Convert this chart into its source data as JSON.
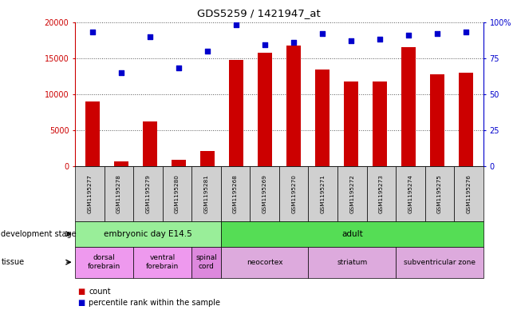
{
  "title": "GDS5259 / 1421947_at",
  "samples": [
    "GSM1195277",
    "GSM1195278",
    "GSM1195279",
    "GSM1195280",
    "GSM1195281",
    "GSM1195268",
    "GSM1195269",
    "GSM1195270",
    "GSM1195271",
    "GSM1195272",
    "GSM1195273",
    "GSM1195274",
    "GSM1195275",
    "GSM1195276"
  ],
  "counts": [
    9000,
    700,
    6200,
    900,
    2100,
    14700,
    15700,
    16700,
    13400,
    11800,
    11800,
    16500,
    12800,
    13000
  ],
  "percentiles": [
    93,
    65,
    90,
    68,
    80,
    98,
    84,
    86,
    92,
    87,
    88,
    91,
    92,
    93
  ],
  "bar_color": "#cc0000",
  "dot_color": "#0000cc",
  "ylim_left": [
    0,
    20000
  ],
  "ylim_right": [
    0,
    100
  ],
  "yticks_left": [
    0,
    5000,
    10000,
    15000,
    20000
  ],
  "yticks_right": [
    0,
    25,
    50,
    75,
    100
  ],
  "development_stages": [
    {
      "label": "embryonic day E14.5",
      "start": 0,
      "end": 4,
      "color": "#99ee99"
    },
    {
      "label": "adult",
      "start": 5,
      "end": 13,
      "color": "#55dd55"
    }
  ],
  "tissues": [
    {
      "label": "dorsal\nforebrain",
      "start": 0,
      "end": 1,
      "color": "#ee99ee"
    },
    {
      "label": "ventral\nforebrain",
      "start": 2,
      "end": 3,
      "color": "#ee99ee"
    },
    {
      "label": "spinal\ncord",
      "start": 4,
      "end": 4,
      "color": "#dd88dd"
    },
    {
      "label": "neocortex",
      "start": 5,
      "end": 7,
      "color": "#ddaadd"
    },
    {
      "label": "striatum",
      "start": 8,
      "end": 10,
      "color": "#ddaadd"
    },
    {
      "label": "subventricular zone",
      "start": 11,
      "end": 13,
      "color": "#ddaadd"
    }
  ],
  "grid_color": "#555555",
  "legend_count_color": "#cc0000",
  "legend_pct_color": "#0000cc",
  "fig_width": 6.48,
  "fig_height": 3.93,
  "dpi": 100
}
